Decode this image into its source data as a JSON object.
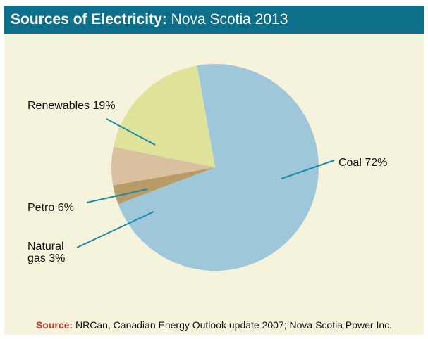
{
  "title": {
    "bold": "Sources of Electricity:",
    "rest": "Nova Scotia 2013"
  },
  "footer": {
    "bold": "Source:",
    "text": "NRCan, Canadian Energy Outlook update 2007; Nova Scotia Power Inc."
  },
  "colors": {
    "header_bg": "#0e6f8a",
    "panel_bg": "#f6f3dc",
    "leader": "#1a8bad"
  },
  "chart_data": {
    "type": "pie",
    "title": "Sources of Electricity: Nova Scotia 2013",
    "slices": [
      {
        "label": "Coal",
        "label_text": "Coal 72%",
        "value": 72,
        "color": "#9ec8da"
      },
      {
        "label": "Natural gas",
        "label_text": "Natural gas 3%",
        "label_lines": [
          "Natural",
          "gas 3%"
        ],
        "value": 3,
        "color": "#b99b66"
      },
      {
        "label": "Petro",
        "label_text": "Petro 6%",
        "value": 6,
        "color": "#d9c09f"
      },
      {
        "label": "Renewables",
        "label_text": "Renewables 19%",
        "value": 19,
        "color": "#dfe39a"
      }
    ]
  }
}
